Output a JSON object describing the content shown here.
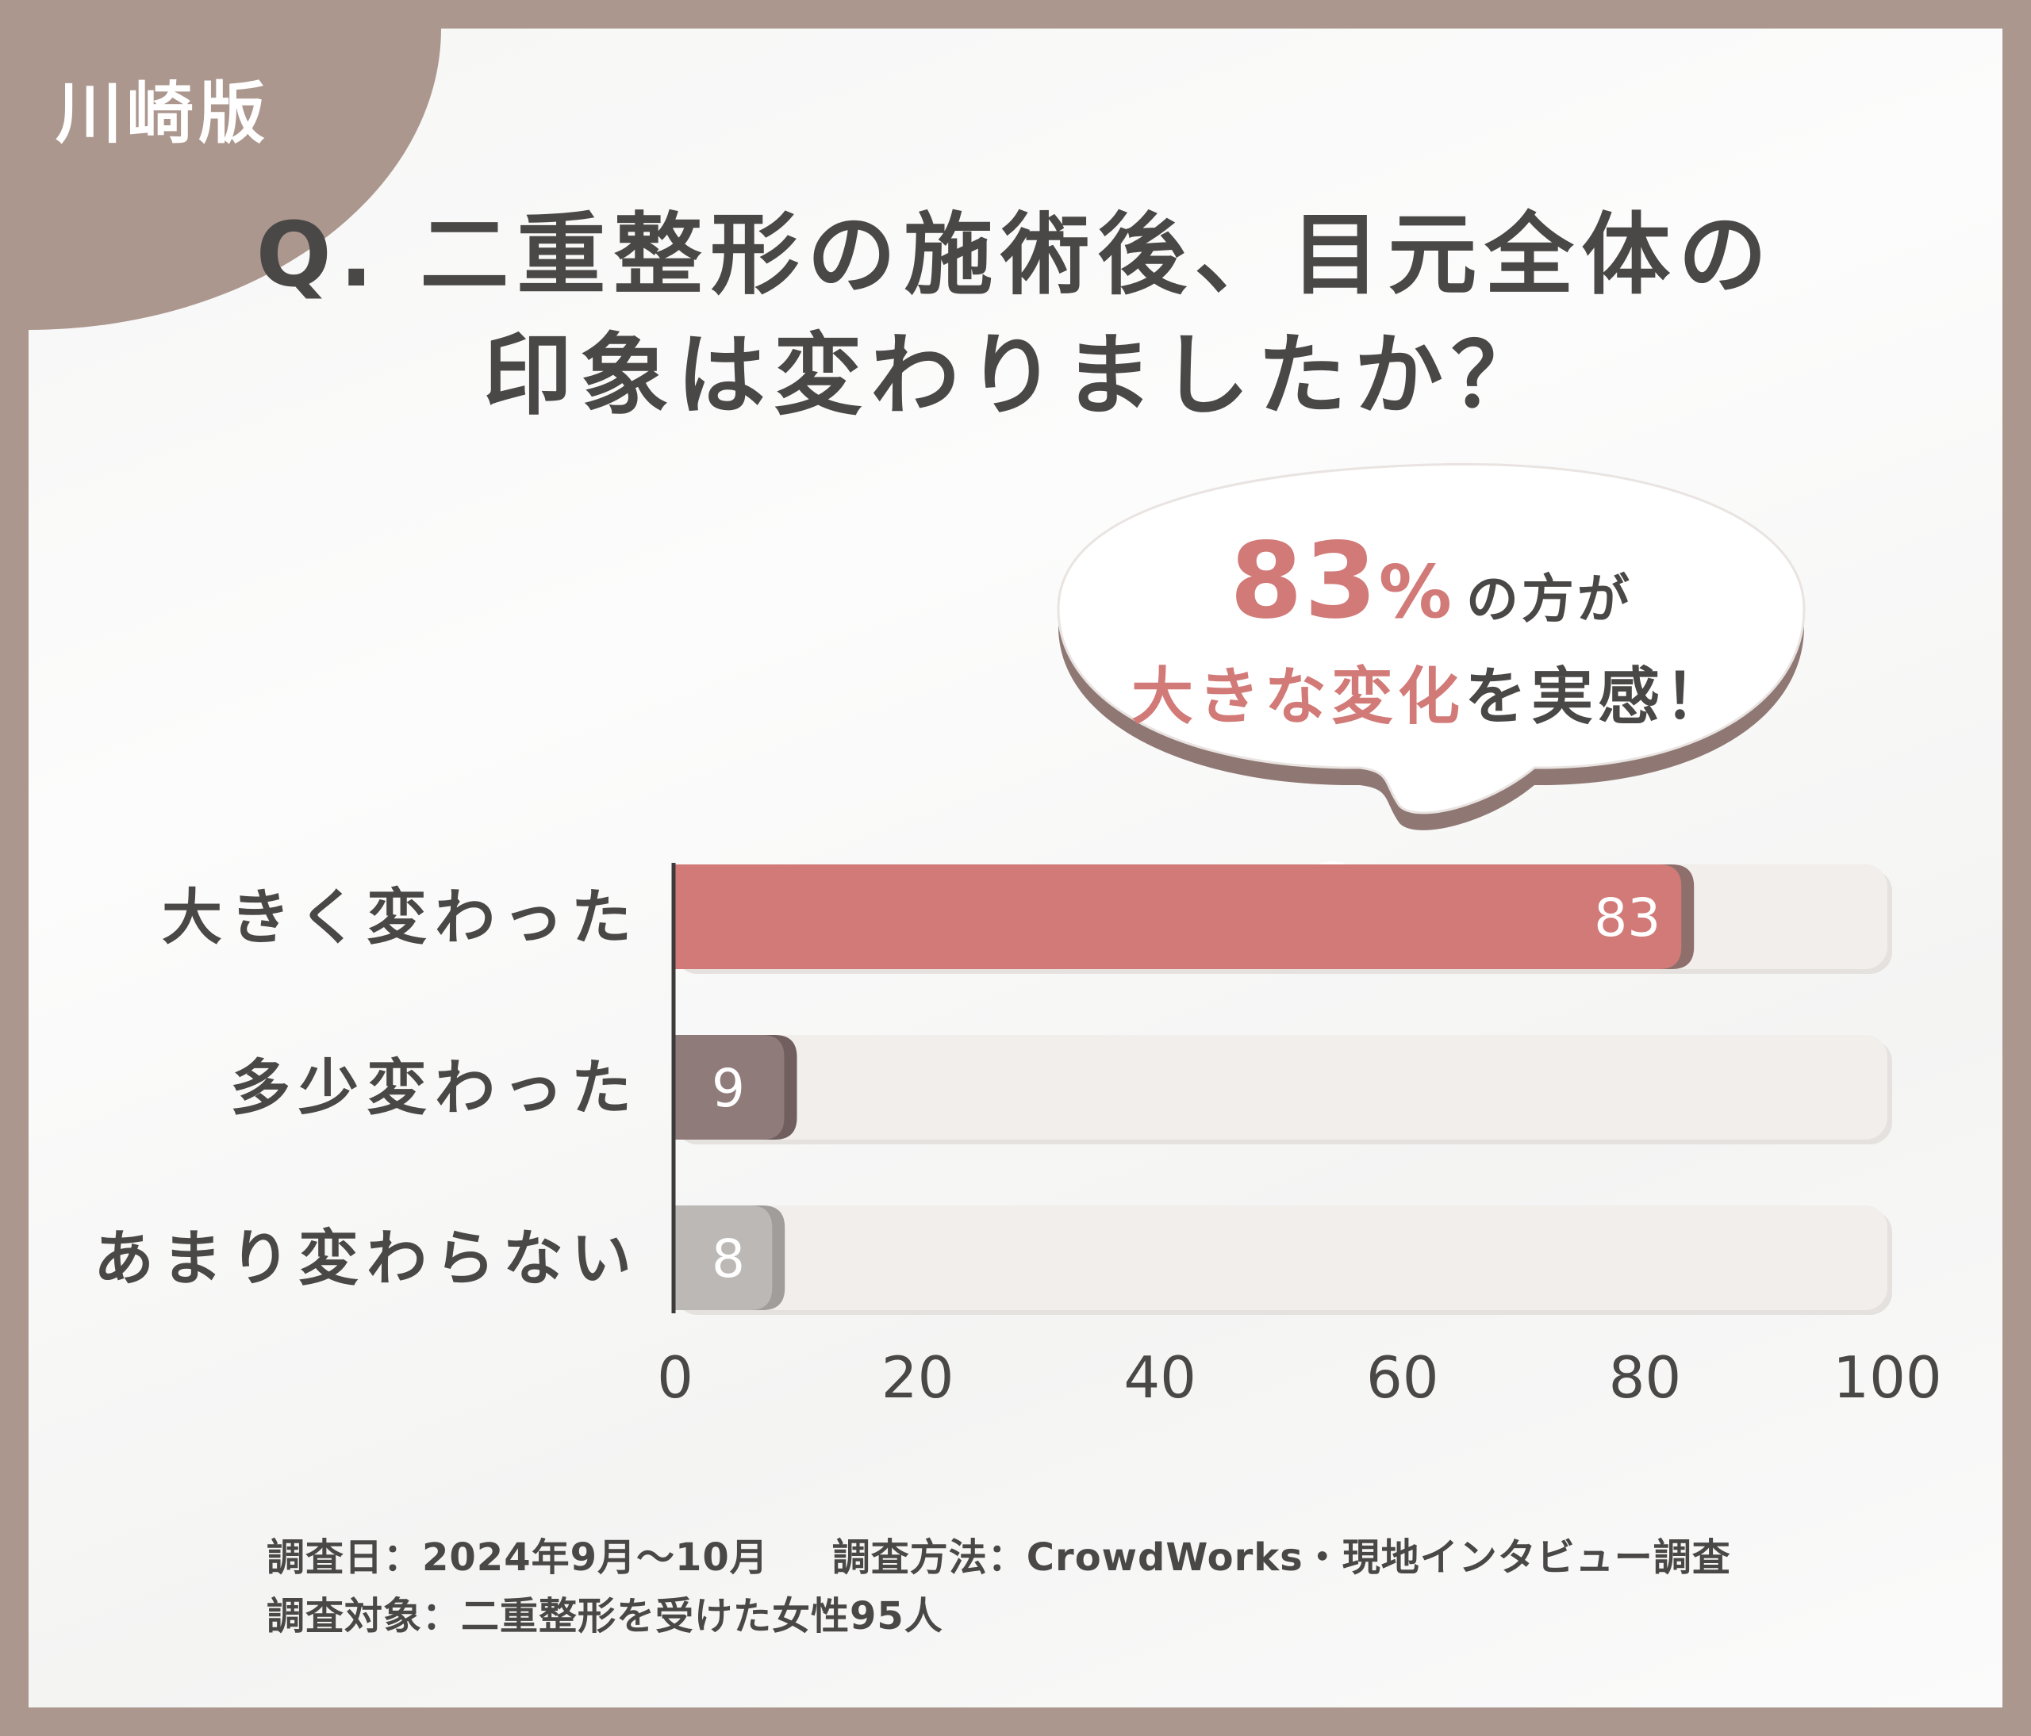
{
  "version_label": "川崎版",
  "title": {
    "line1": "Q. 二重整形の施術後、目元全体の",
    "line2": "印象は変わりましたか？"
  },
  "callout": {
    "percent": "83",
    "percent_symbol": "%",
    "line1_suffix": "の方が",
    "line2_highlight": "大きな変化",
    "line2_suffix": "を実感！"
  },
  "chart_data": {
    "type": "bar",
    "orientation": "horizontal",
    "categories": [
      "大きく変わった",
      "多少変わった",
      "あまり変わらない"
    ],
    "values": [
      83,
      9,
      8
    ],
    "xlim": [
      0,
      100
    ],
    "xticks": [
      "0",
      "20",
      "40",
      "60",
      "80",
      "100"
    ],
    "title": "Q. 二重整形の施術後、目元全体の印象は変わりましたか？",
    "xlabel": "",
    "ylabel": "",
    "colors": [
      "#d17a78",
      "#8f7b7a",
      "#bcb8b6"
    ],
    "shadow_colors": [
      "#8f6f6c",
      "#705f5e",
      "#a19d9b"
    ],
    "track_color": "#f1eeeb"
  },
  "footer": {
    "survey_date": "調査日：2024年9月～10月",
    "survey_method": "調査方法：CrowdWorks・現地インタビュー調査",
    "survey_target": "調査対象：二重整形を受けた女性95人"
  },
  "colors": {
    "frame": "#ac978e",
    "accent": "#d17a78",
    "text": "#4a4847"
  }
}
